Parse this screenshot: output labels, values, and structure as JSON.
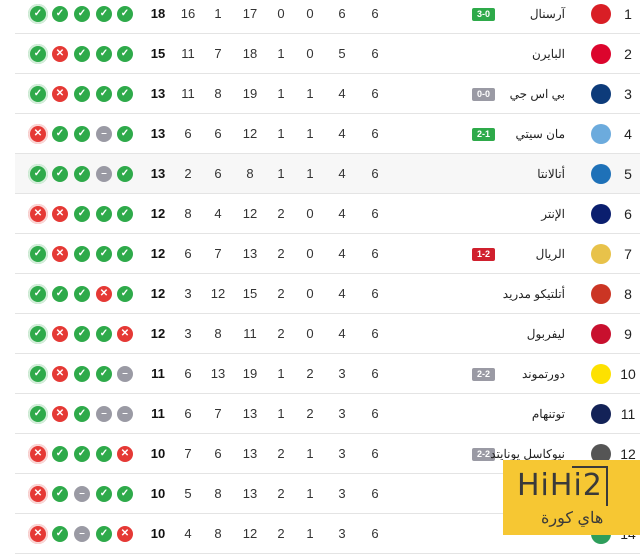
{
  "colors": {
    "win": "#2eaa4a",
    "loss": "#e53935",
    "draw": "#9a9aa4",
    "badge_win": "#2eaa4a",
    "badge_loss": "#d0202e",
    "badge_draw": "#9a9aa4",
    "watermark": "#f6c733"
  },
  "columns_order": [
    "points",
    "gd",
    "ga",
    "gf",
    "lost",
    "drawn",
    "won",
    "played"
  ],
  "rows": [
    {
      "rank": "1",
      "name": "آرسنال",
      "logo": "arsenal-logo",
      "logo_color": "#d91e25",
      "badge": "3-0",
      "badge_type": "win",
      "played": "6",
      "won": "6",
      "drawn": "0",
      "lost": "0",
      "gf": "17",
      "ga": "1",
      "gd": "16",
      "points": "18",
      "form": [
        "W",
        "W",
        "W",
        "W",
        "W"
      ]
    },
    {
      "rank": "2",
      "name": "البايرن",
      "logo": "bayern-logo",
      "logo_color": "#dc052d",
      "badge": "",
      "badge_type": "",
      "played": "6",
      "won": "5",
      "drawn": "0",
      "lost": "1",
      "gf": "18",
      "ga": "7",
      "gd": "11",
      "points": "15",
      "form": [
        "W",
        "L",
        "W",
        "W",
        "W"
      ]
    },
    {
      "rank": "3",
      "name": "بي اس جي",
      "logo": "psg-logo",
      "logo_color": "#0d3b7a",
      "badge": "0-0",
      "badge_type": "draw",
      "played": "6",
      "won": "4",
      "drawn": "1",
      "lost": "1",
      "gf": "19",
      "ga": "8",
      "gd": "11",
      "points": "13",
      "form": [
        "W",
        "L",
        "W",
        "W",
        "W"
      ]
    },
    {
      "rank": "4",
      "name": "مان سيتي",
      "logo": "man-city-logo",
      "logo_color": "#6cabdd",
      "badge": "2-1",
      "badge_type": "win",
      "played": "6",
      "won": "4",
      "drawn": "1",
      "lost": "1",
      "gf": "12",
      "ga": "6",
      "gd": "6",
      "points": "13",
      "form": [
        "L",
        "W",
        "W",
        "D",
        "W"
      ]
    },
    {
      "rank": "5",
      "name": "أتالانتا",
      "logo": "atalanta-logo",
      "logo_color": "#1e71b8",
      "badge": "",
      "badge_type": "",
      "played": "6",
      "won": "4",
      "drawn": "1",
      "lost": "1",
      "gf": "8",
      "ga": "6",
      "gd": "2",
      "points": "13",
      "form": [
        "W",
        "W",
        "W",
        "D",
        "W"
      ]
    },
    {
      "rank": "6",
      "name": "الإنتر",
      "logo": "inter-logo",
      "logo_color": "#0a1e6e",
      "badge": "",
      "badge_type": "",
      "played": "6",
      "won": "4",
      "drawn": "0",
      "lost": "2",
      "gf": "12",
      "ga": "4",
      "gd": "8",
      "points": "12",
      "form": [
        "L",
        "L",
        "W",
        "W",
        "W"
      ]
    },
    {
      "rank": "7",
      "name": "الريال",
      "logo": "real-madrid-logo",
      "logo_color": "#e8c24a",
      "badge": "1-2",
      "badge_type": "loss",
      "played": "6",
      "won": "4",
      "drawn": "0",
      "lost": "2",
      "gf": "13",
      "ga": "7",
      "gd": "6",
      "points": "12",
      "form": [
        "W",
        "L",
        "W",
        "W",
        "W"
      ]
    },
    {
      "rank": "8",
      "name": "أتلتيكو مدريد",
      "logo": "atletico-logo",
      "logo_color": "#cb3524",
      "badge": "",
      "badge_type": "",
      "played": "6",
      "won": "4",
      "drawn": "0",
      "lost": "2",
      "gf": "15",
      "ga": "12",
      "gd": "3",
      "points": "12",
      "form": [
        "W",
        "W",
        "W",
        "L",
        "W"
      ]
    },
    {
      "rank": "9",
      "name": "ليفربول",
      "logo": "liverpool-logo",
      "logo_color": "#c8102e",
      "badge": "",
      "badge_type": "",
      "played": "6",
      "won": "4",
      "drawn": "0",
      "lost": "2",
      "gf": "11",
      "ga": "8",
      "gd": "3",
      "points": "12",
      "form": [
        "W",
        "L",
        "W",
        "W",
        "L"
      ]
    },
    {
      "rank": "10",
      "name": "دورتموند",
      "logo": "dortmund-logo",
      "logo_color": "#fde100",
      "badge": "2-2",
      "badge_type": "draw",
      "played": "6",
      "won": "3",
      "drawn": "2",
      "lost": "1",
      "gf": "19",
      "ga": "13",
      "gd": "6",
      "points": "11",
      "form": [
        "W",
        "L",
        "W",
        "W",
        "D"
      ]
    },
    {
      "rank": "11",
      "name": "توتنهام",
      "logo": "tottenham-logo",
      "logo_color": "#132257",
      "badge": "",
      "badge_type": "",
      "played": "6",
      "won": "3",
      "drawn": "2",
      "lost": "1",
      "gf": "13",
      "ga": "7",
      "gd": "6",
      "points": "11",
      "form": [
        "W",
        "L",
        "W",
        "D",
        "D"
      ]
    },
    {
      "rank": "12",
      "name": "نيوكاسل يونايتد",
      "logo": "newcastle-logo",
      "logo_color": "#555555",
      "badge": "2-2",
      "badge_type": "draw",
      "played": "6",
      "won": "3",
      "drawn": "1",
      "lost": "2",
      "gf": "13",
      "ga": "6",
      "gd": "7",
      "points": "10",
      "form": [
        "L",
        "W",
        "W",
        "W",
        "L"
      ]
    },
    {
      "rank": "13",
      "name": "",
      "logo": "team-logo",
      "logo_color": "#cccccc",
      "badge": "",
      "badge_type": "",
      "played": "6",
      "won": "3",
      "drawn": "1",
      "lost": "2",
      "gf": "13",
      "ga": "8",
      "gd": "5",
      "points": "10",
      "form": [
        "L",
        "W",
        "D",
        "W",
        "W"
      ]
    },
    {
      "rank": "14",
      "name": "",
      "logo": "sporting-logo",
      "logo_color": "#2e9e5b",
      "badge": "",
      "badge_type": "",
      "played": "6",
      "won": "3",
      "drawn": "1",
      "lost": "2",
      "gf": "12",
      "ga": "8",
      "gd": "4",
      "points": "10",
      "form": [
        "L",
        "W",
        "D",
        "W",
        "L"
      ]
    }
  ],
  "watermark": {
    "logo_text": "HiHi2",
    "arabic": "هاي كورة"
  }
}
